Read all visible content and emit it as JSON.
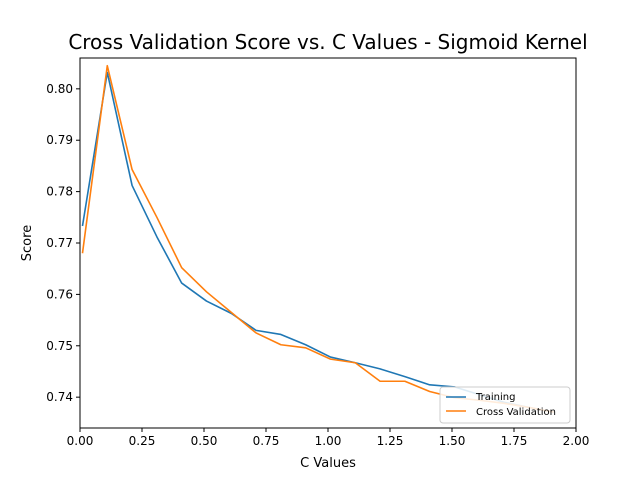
{
  "chart_data": {
    "type": "line",
    "title": "Cross Validation Score vs. C Values - Sigmoid Kernel",
    "xlabel": "C Values",
    "ylabel": "Score",
    "xlim": [
      0.0,
      2.0
    ],
    "ylim": [
      0.734,
      0.806
    ],
    "xticks": [
      "0.00",
      "0.25",
      "0.50",
      "0.75",
      "1.00",
      "1.25",
      "1.50",
      "1.75",
      "2.00"
    ],
    "yticks": [
      "0.74",
      "0.75",
      "0.76",
      "0.77",
      "0.78",
      "0.79",
      "0.80"
    ],
    "grid": false,
    "legend_position": "lower-right",
    "x": [
      0.01,
      0.11,
      0.21,
      0.31,
      0.41,
      0.51,
      0.61,
      0.71,
      0.81,
      0.91,
      1.01,
      1.11,
      1.21,
      1.31,
      1.41,
      1.51,
      1.61,
      1.71,
      1.81,
      1.91
    ],
    "series": [
      {
        "name": "Training",
        "color": "#1f77b4",
        "values": [
          0.7733,
          0.8032,
          0.7812,
          0.7712,
          0.7622,
          0.7587,
          0.7563,
          0.753,
          0.7522,
          0.7502,
          0.7478,
          0.7467,
          0.7455,
          0.744,
          0.7424,
          0.742,
          0.7405,
          0.739,
          0.738,
          0.7371
        ]
      },
      {
        "name": "Cross Validation",
        "color": "#ff7f0e",
        "values": [
          0.768,
          0.8045,
          0.7843,
          0.775,
          0.7652,
          0.7605,
          0.7565,
          0.7525,
          0.7502,
          0.7496,
          0.7474,
          0.7467,
          0.7431,
          0.7431,
          0.7411,
          0.7399,
          0.7394,
          0.7388,
          0.738,
          0.7371
        ]
      }
    ]
  }
}
